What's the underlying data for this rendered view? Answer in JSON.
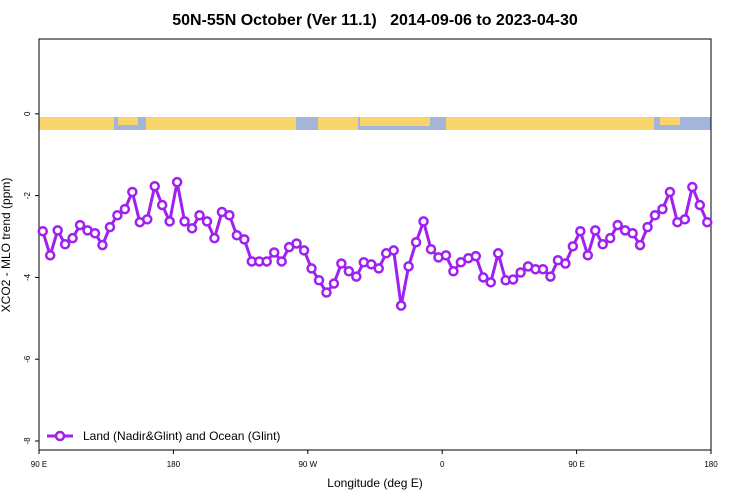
{
  "chart_data": {
    "type": "line",
    "title": "50N-55N October (Ver 11.1)   2014-09-06 to 2023-04-30",
    "x_label": "Longitude (deg E)",
    "y_label": "XCO2 - MLO trend (ppm)",
    "xlim": [
      90,
      540
    ],
    "ylim": [
      -8.22,
      1.83
    ],
    "xticks": [
      {
        "value": 90,
        "label": "90 E"
      },
      180,
      {
        "value": 270,
        "label": "90 W"
      },
      {
        "value": 360,
        "label": "0"
      },
      {
        "value": 450,
        "label": "90 E"
      },
      {
        "value": 540,
        "label": "180"
      }
    ],
    "yticks": [
      0,
      -2,
      -4,
      -6,
      -8
    ],
    "legend": "lower left",
    "x": [
      92.5,
      97.5,
      102.5,
      107.5,
      112.5,
      117.5,
      122.5,
      127.5,
      132.5,
      137.5,
      142.5,
      147.5,
      152.5,
      157.5,
      162.5,
      167.5,
      172.5,
      177.5,
      182.5,
      187.5,
      192.5,
      197.5,
      202.5,
      207.5,
      212.5,
      217.5,
      222.5,
      227.5,
      232.5,
      237.5,
      242.5,
      247.5,
      252.5,
      257.5,
      262.5,
      267.5,
      272.5,
      277.5,
      282.5,
      287.5,
      292.5,
      297.5,
      302.5,
      307.5,
      312.5,
      317.5,
      322.5,
      327.5,
      332.5,
      337.5,
      342.5,
      347.5,
      352.5,
      357.5,
      362.5,
      367.5,
      372.5,
      377.5,
      382.5,
      387.5,
      392.5,
      397.5,
      402.5,
      407.5,
      412.5,
      417.5,
      422.5,
      427.5,
      432.5,
      437.5,
      442.5,
      447.5,
      452.5,
      457.5,
      462.5,
      467.5,
      472.5,
      477.5,
      482.5,
      487.5,
      492.5,
      497.5,
      502.5,
      507.5,
      512.5,
      517.5,
      522.5,
      527.5,
      532.5,
      537.5
    ],
    "series": [
      {
        "name": "Land (Nadir&Glint) and Ocean (Glint)",
        "color": "#a020f0",
        "values": [
          -2.87,
          -3.46,
          -2.85,
          -3.19,
          -3.04,
          -2.72,
          -2.85,
          -2.92,
          -3.21,
          -2.77,
          -2.48,
          -2.33,
          -1.91,
          -2.65,
          -2.58,
          -1.77,
          -2.23,
          -2.63,
          -1.67,
          -2.63,
          -2.8,
          -2.48,
          -2.63,
          -3.04,
          -2.4,
          -2.48,
          -2.97,
          -3.07,
          -3.61,
          -3.61,
          -3.61,
          -3.39,
          -3.61,
          -3.26,
          -3.17,
          -3.34,
          -3.78,
          -4.07,
          -4.37,
          -4.15,
          -3.66,
          -3.85,
          -3.98,
          -3.63,
          -3.68,
          -3.78,
          -3.41,
          -3.34,
          -4.69,
          -3.73,
          -3.14,
          -2.63,
          -3.31,
          -3.51,
          -3.46,
          -3.85,
          -3.63,
          -3.53,
          -3.48,
          -4.0,
          -4.12,
          -3.41,
          -4.07,
          -4.05,
          -3.88,
          -3.73,
          -3.8,
          -3.8,
          -3.98,
          -3.58,
          -3.66,
          -3.24,
          -2.87,
          -3.46,
          -2.85,
          -3.19,
          -3.04,
          -2.72,
          -2.85,
          -2.92,
          -3.21,
          -2.77,
          -2.48,
          -2.33,
          -1.91,
          -2.65,
          -2.58,
          -1.79,
          -2.23,
          -2.65
        ]
      }
    ]
  }
}
